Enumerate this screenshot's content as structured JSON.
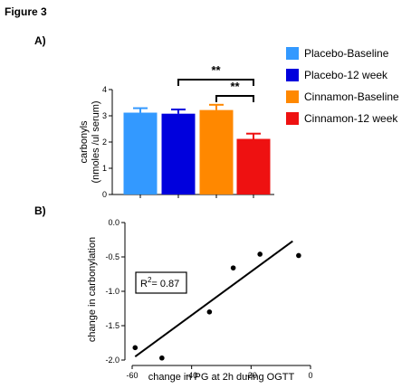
{
  "figure_title": "Figure 3",
  "panels": {
    "a": "A)",
    "b": "B)"
  },
  "chart_data": [
    {
      "type": "bar",
      "panel": "A)",
      "categories": [
        "Placebo-Baseline",
        "Placebo-12 week",
        "Cinnamon-Baseline",
        "Cinnamon-12 week"
      ],
      "values": [
        3.12,
        3.08,
        3.22,
        2.12
      ],
      "errors": [
        0.17,
        0.16,
        0.2,
        0.2
      ],
      "colors": [
        "#3399ff",
        "#0000dd",
        "#ff8800",
        "#ee1111"
      ],
      "ylabel": "carbonyls",
      "ylabel2": "(nmoles /ul serum)",
      "ylim": [
        0,
        4
      ],
      "yticks": [
        0,
        1,
        2,
        3,
        4
      ],
      "legend_position": "right",
      "grid": false,
      "annotations": [
        {
          "label": "**",
          "from": 1,
          "to": 3
        },
        {
          "label": "**",
          "from": 2,
          "to": 3
        }
      ]
    },
    {
      "type": "scatter",
      "panel": "B)",
      "x": [
        -59,
        -50,
        -34,
        -26,
        -17,
        -4
      ],
      "y": [
        -1.82,
        -1.97,
        -1.3,
        -0.66,
        -0.46,
        -0.48
      ],
      "fit_line": {
        "x": [
          -59,
          -6
        ],
        "y": [
          -1.95,
          -0.27
        ]
      },
      "xlabel": "change in PG at 2h during OGTT",
      "ylabel": "change in carbonylation",
      "xlim": [
        -60,
        0
      ],
      "ylim": [
        -2.0,
        0.0
      ],
      "xticks": [
        -60,
        -40,
        -20,
        0
      ],
      "yticks": [
        0.0,
        -0.5,
        -1.0,
        -1.5,
        -2.0
      ],
      "ytick_labels": [
        "0.0",
        "-0.5",
        "-1.0",
        "-1.5",
        "-2.0"
      ],
      "annotation": {
        "prefix": "R",
        "sup": "2",
        "suffix": "= 0.87"
      },
      "grid": false
    }
  ]
}
